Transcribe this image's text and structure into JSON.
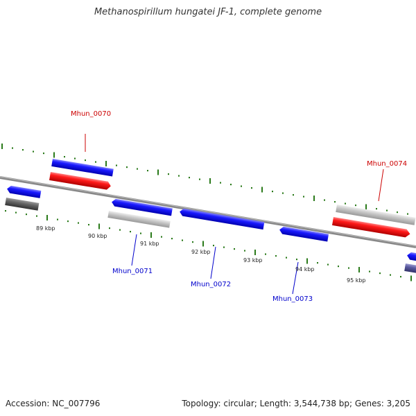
{
  "title": "Methanospirillum hungatei JF-1, complete genome",
  "footer": {
    "accession": "Accession: NC_007796",
    "stats": "Topology: circular; Length: 3,544,738 bp; Genes: 3,205"
  },
  "ticks": [
    "89 kbp",
    "90 kbp",
    "91 kbp",
    "92 kbp",
    "93 kbp",
    "94 kbp",
    "95 kbp"
  ],
  "gene_labels": [
    {
      "name": "Mhun_0070",
      "color": "#cc0000"
    },
    {
      "name": "Mhun_0071",
      "color": "#0000cc"
    },
    {
      "name": "Mhun_0072",
      "color": "#0000cc"
    },
    {
      "name": "Mhun_0073",
      "color": "#0000cc"
    },
    {
      "name": "Mhun_0074",
      "color": "#cc0000"
    }
  ],
  "colors": {
    "forward_cds": "#1a1aff",
    "rna": "#ff1a1a",
    "gene_gray": "#c8c8c8",
    "tick_green": "#2a7a1a",
    "backbone": "#888888"
  }
}
